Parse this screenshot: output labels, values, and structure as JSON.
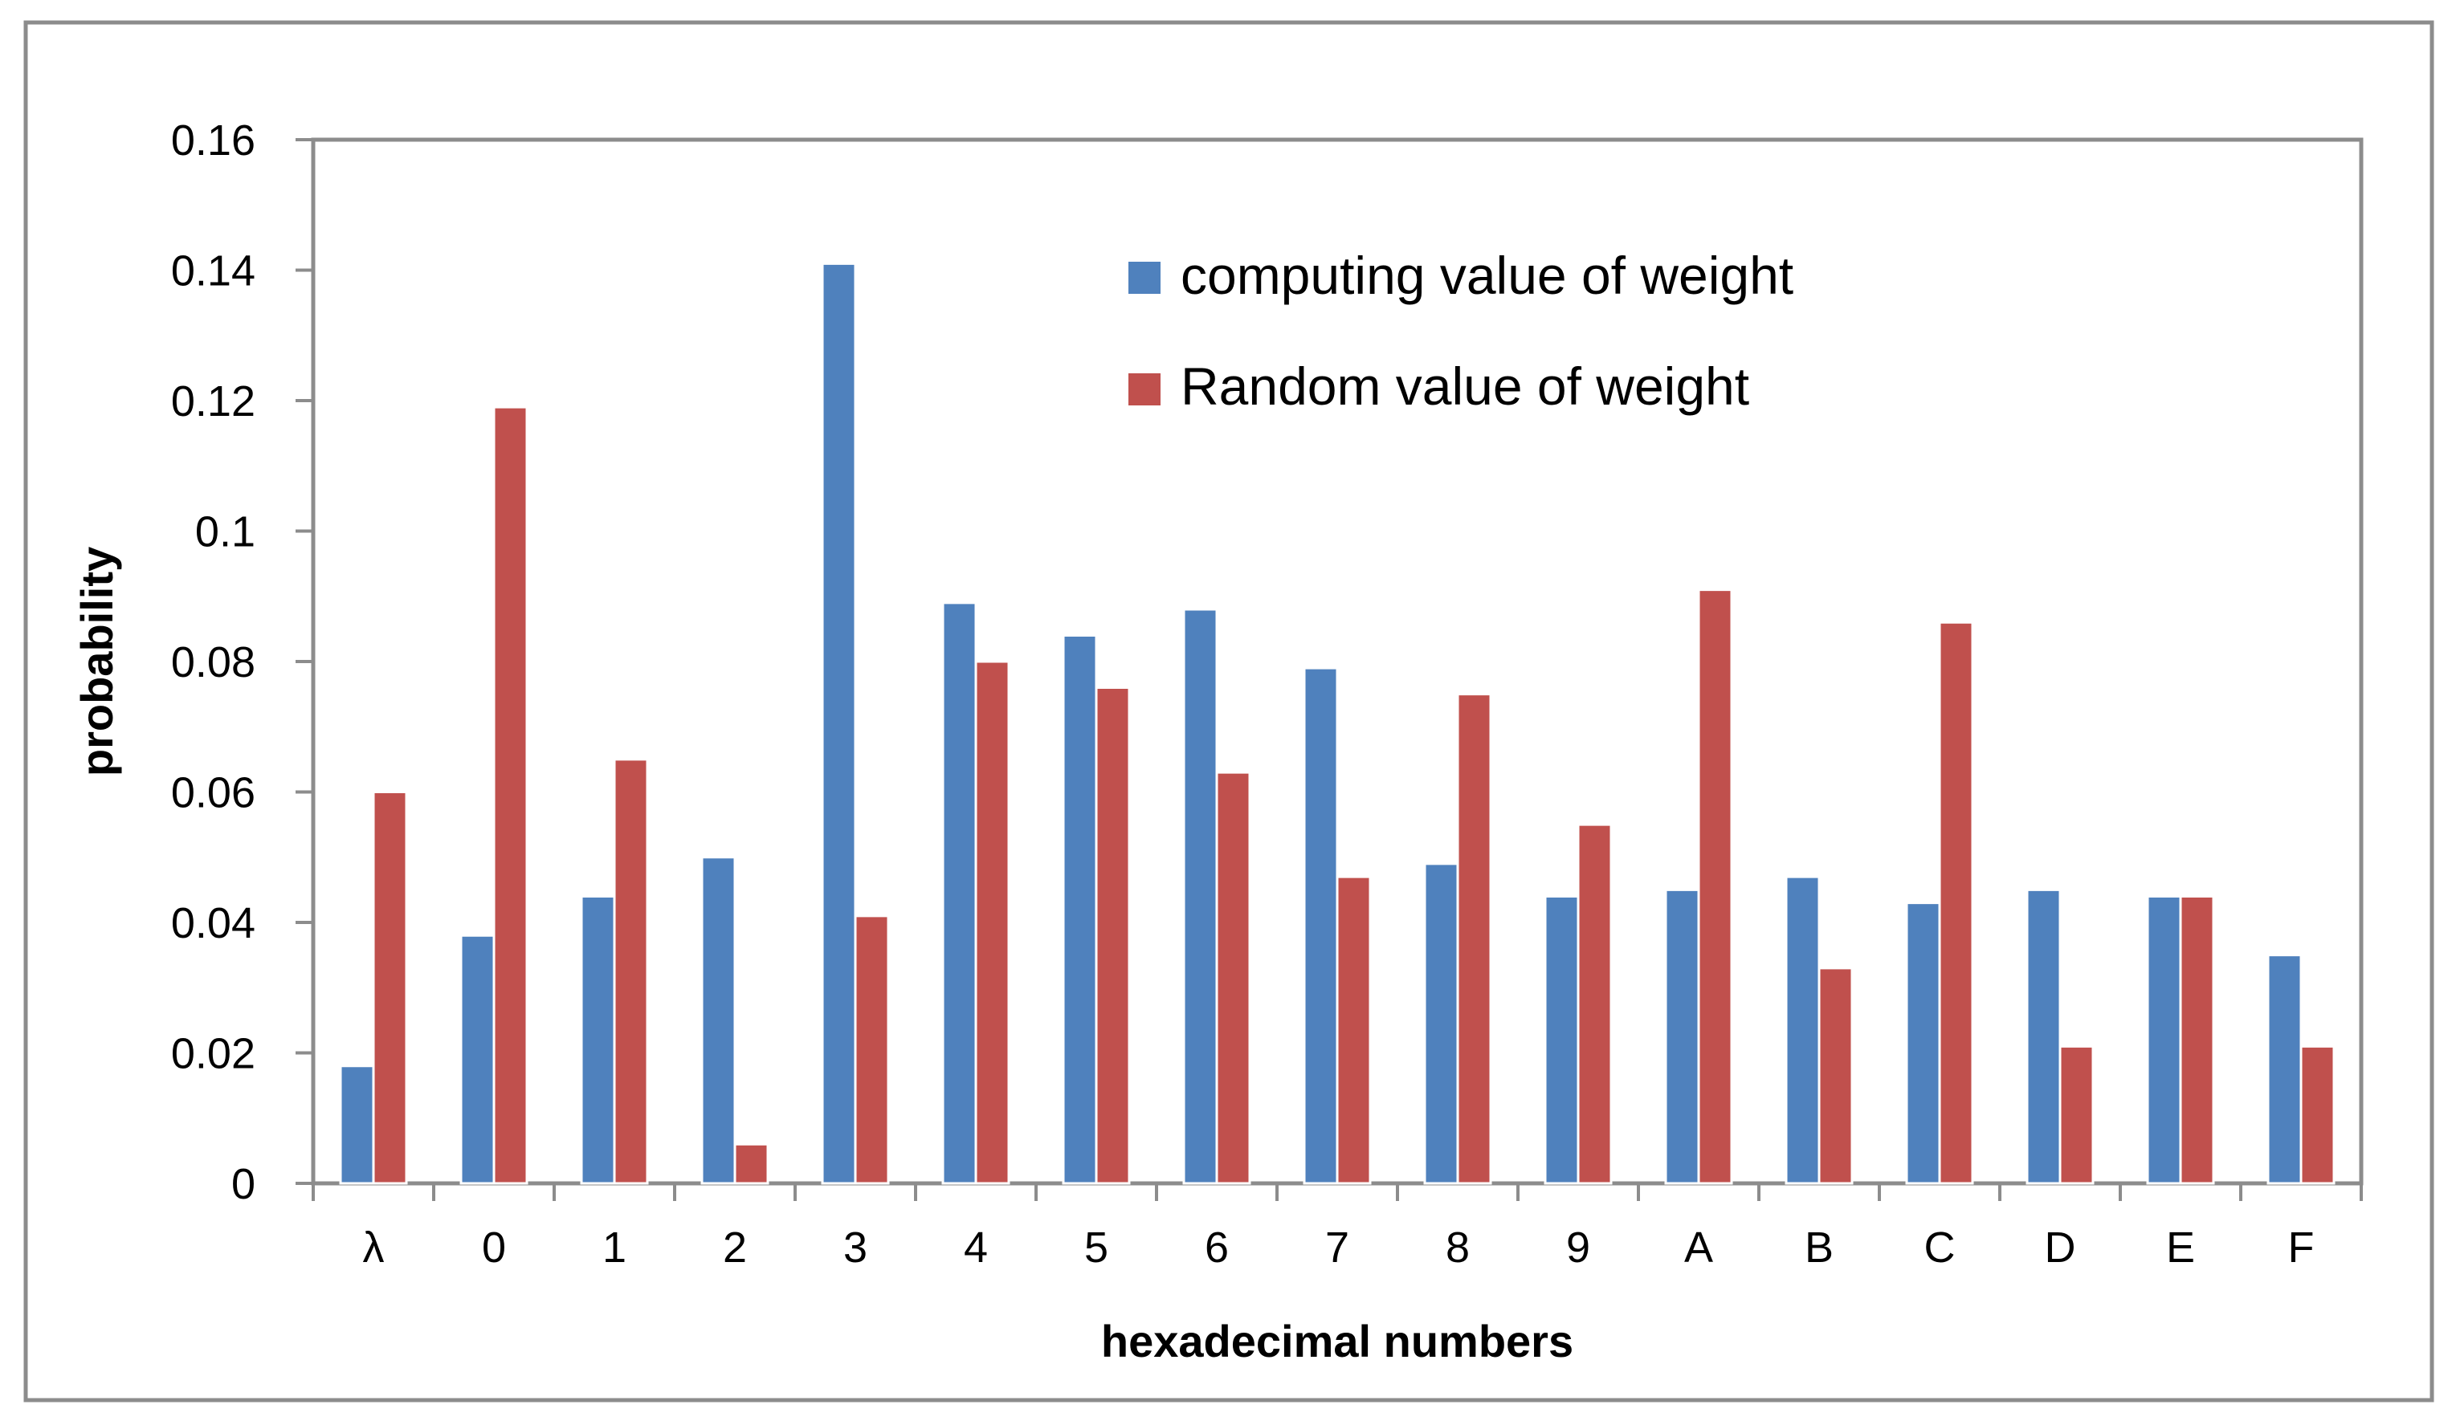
{
  "chart_data": {
    "type": "bar",
    "title": "",
    "xlabel": "hexadecimal numbers",
    "ylabel": "probability",
    "ylim": [
      0,
      0.16
    ],
    "yticks": [
      0,
      0.02,
      0.04,
      0.06,
      0.08,
      0.1,
      0.12,
      0.14,
      0.16
    ],
    "ytick_labels": [
      "0",
      "0.02",
      "0.04",
      "0.06",
      "0.08",
      "0.1",
      "0.12",
      "0.14",
      "0.16"
    ],
    "grid": false,
    "legend_position": "top-right",
    "categories": [
      "λ",
      "0",
      "1",
      "2",
      "3",
      "4",
      "5",
      "6",
      "7",
      "8",
      "9",
      "A",
      "B",
      "C",
      "D",
      "E",
      "F"
    ],
    "series": [
      {
        "name": "computing value of weight",
        "color": "#4F81BD",
        "values": [
          0.018,
          0.038,
          0.044,
          0.05,
          0.141,
          0.089,
          0.084,
          0.088,
          0.079,
          0.049,
          0.044,
          0.045,
          0.047,
          0.043,
          0.045,
          0.044,
          0.035
        ]
      },
      {
        "name": "Random value of weight",
        "color": "#C0504D",
        "values": [
          0.06,
          0.119,
          0.065,
          0.006,
          0.041,
          0.08,
          0.076,
          0.063,
          0.047,
          0.075,
          0.055,
          0.091,
          0.033,
          0.086,
          0.021,
          0.044,
          0.021
        ]
      }
    ]
  }
}
